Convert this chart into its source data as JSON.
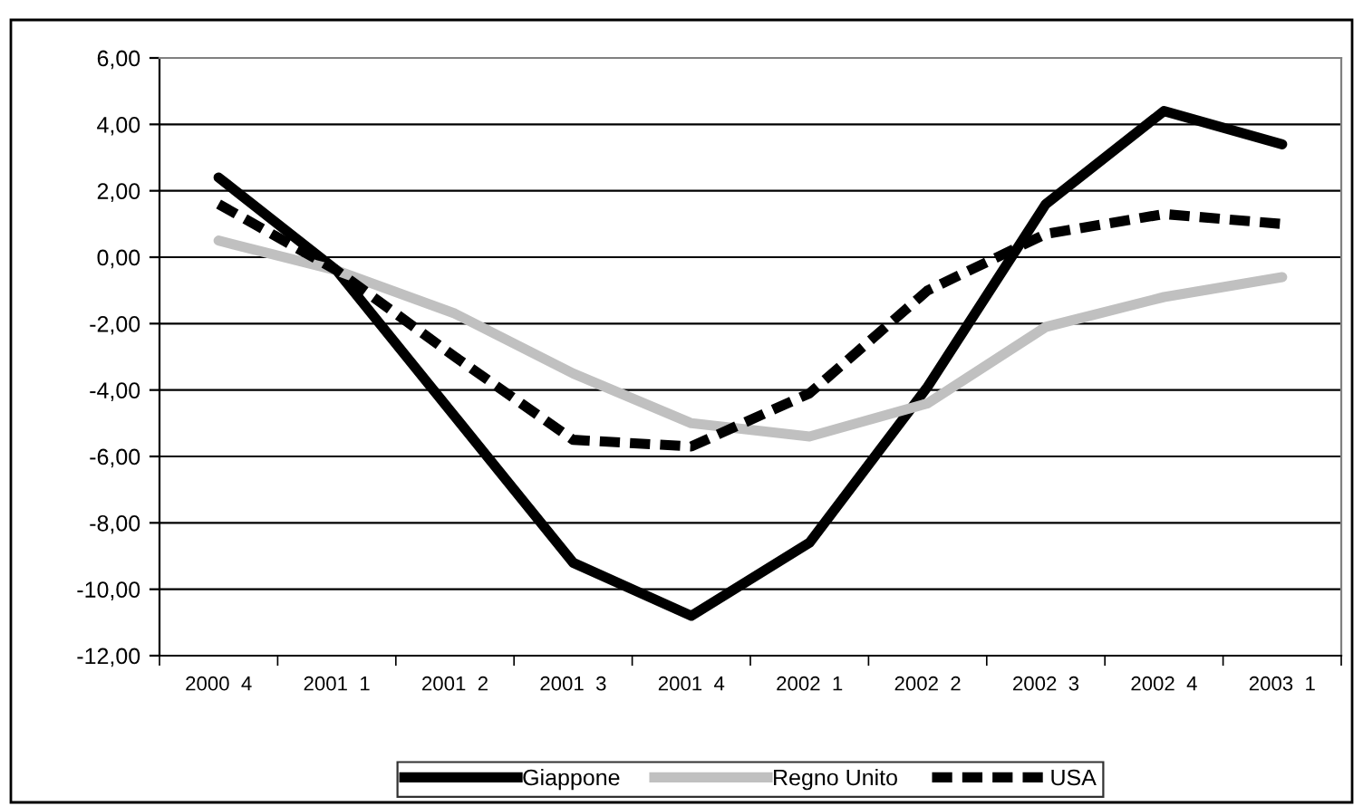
{
  "chart_data": {
    "type": "line",
    "categories": [
      "2000  4",
      "2001  1",
      "2001  2",
      "2001  3",
      "2001  4",
      "2002  1",
      "2002  2",
      "2002  3",
      "2002  4",
      "2003  1"
    ],
    "series": [
      {
        "name": "Giappone",
        "color": "#000000",
        "line_style": "solid",
        "values": [
          2.4,
          -0.4,
          -4.8,
          -9.2,
          -10.8,
          -8.6,
          -3.9,
          1.6,
          4.4,
          3.4
        ]
      },
      {
        "name": "Regno Unito",
        "color": "#c0c0c0",
        "line_style": "solid",
        "values": [
          0.5,
          -0.4,
          -1.7,
          -3.5,
          -5.0,
          -5.4,
          -4.4,
          -2.1,
          -1.2,
          -0.6
        ]
      },
      {
        "name": "USA",
        "color": "#000000",
        "line_style": "dashed",
        "values": [
          1.6,
          -0.4,
          -3.0,
          -5.5,
          -5.7,
          -4.1,
          -1.0,
          0.7,
          1.3,
          1.0
        ]
      }
    ],
    "ylim": [
      -12,
      6
    ],
    "yticks": [
      {
        "value": -12,
        "label": "-12,00"
      },
      {
        "value": -10,
        "label": "-10,00"
      },
      {
        "value": -8,
        "label": "-8,00"
      },
      {
        "value": -6,
        "label": "-6,00"
      },
      {
        "value": -4,
        "label": "-4,00"
      },
      {
        "value": -2,
        "label": "-2,00"
      },
      {
        "value": 0,
        "label": "0,00"
      },
      {
        "value": 2,
        "label": "2,00"
      },
      {
        "value": 4,
        "label": "4,00"
      },
      {
        "value": 6,
        "label": "6,00"
      }
    ],
    "grid": "y",
    "legend": "bottom",
    "marker": "none"
  }
}
